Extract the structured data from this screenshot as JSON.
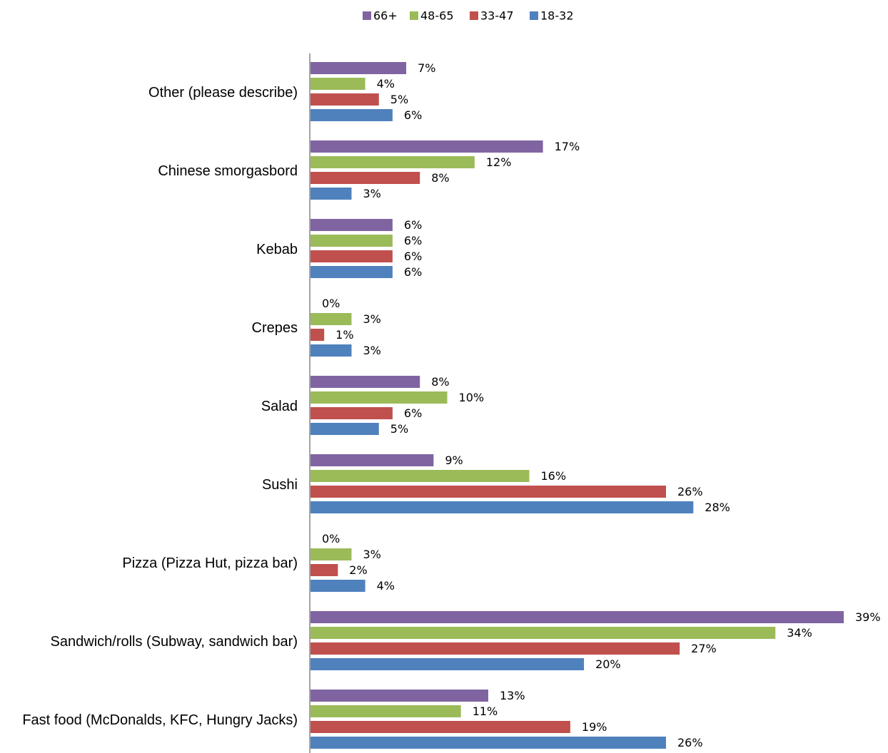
{
  "chart_data": {
    "type": "bar",
    "orientation": "horizontal",
    "title": "",
    "xlabel": "",
    "ylabel": "",
    "categories": [
      "Other (please describe)",
      "Chinese smorgasbord",
      "Kebab",
      "Crepes",
      "Salad",
      "Sushi",
      "Pizza (Pizza Hut, pizza bar)",
      "Sandwich/rolls (Subway, sandwich bar)",
      "Fast food (McDonalds, KFC, Hungry Jacks)"
    ],
    "series": [
      {
        "name": "66+",
        "color": "#8064A2",
        "values": [
          7,
          17,
          6,
          0,
          8,
          9,
          0,
          39,
          13
        ]
      },
      {
        "name": "48-65",
        "color": "#9BBB59",
        "values": [
          4,
          12,
          6,
          3,
          10,
          16,
          3,
          34,
          11
        ]
      },
      {
        "name": "33-47",
        "color": "#C0504D",
        "values": [
          5,
          8,
          6,
          1,
          6,
          26,
          2,
          27,
          19
        ]
      },
      {
        "name": "18-32",
        "color": "#4F81BD",
        "values": [
          6,
          3,
          6,
          3,
          5,
          28,
          4,
          20,
          26
        ]
      }
    ],
    "value_suffix": "%",
    "xlim": [
      0,
      39
    ],
    "grid": false,
    "legend": "top-center"
  }
}
